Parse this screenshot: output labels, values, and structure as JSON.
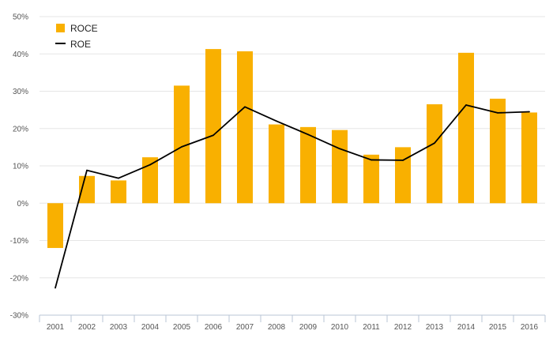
{
  "chart_data": {
    "type": "bar",
    "categories": [
      "2001",
      "2002",
      "2003",
      "2004",
      "2005",
      "2006",
      "2007",
      "2008",
      "2009",
      "2010",
      "2011",
      "2012",
      "2013",
      "2014",
      "2015",
      "2016"
    ],
    "series": [
      {
        "name": "ROCE",
        "kind": "bar",
        "color": "#F9B000",
        "values": [
          -12,
          7.3,
          6.1,
          12.3,
          31.5,
          41.3,
          40.7,
          21.1,
          20.4,
          19.6,
          13.0,
          15.0,
          26.5,
          40.3,
          28.0,
          24.3
        ]
      },
      {
        "name": "ROE",
        "kind": "line",
        "color": "#000000",
        "values": [
          -22.7,
          8.8,
          6.7,
          10.3,
          15.1,
          18.2,
          25.8,
          22.0,
          18.4,
          14.6,
          11.6,
          11.5,
          16.1,
          26.3,
          24.2,
          24.5
        ]
      }
    ],
    "ylim": [
      -30,
      50
    ],
    "yticks": [
      "-30%",
      "-20%",
      "-10%",
      "0%",
      "10%",
      "20%",
      "30%",
      "40%",
      "50%"
    ],
    "ytick_values": [
      -30,
      -20,
      -10,
      0,
      10,
      20,
      30,
      40,
      50
    ],
    "grid": true,
    "legend_position": "top-left",
    "title": "",
    "xlabel": "",
    "ylabel": ""
  }
}
